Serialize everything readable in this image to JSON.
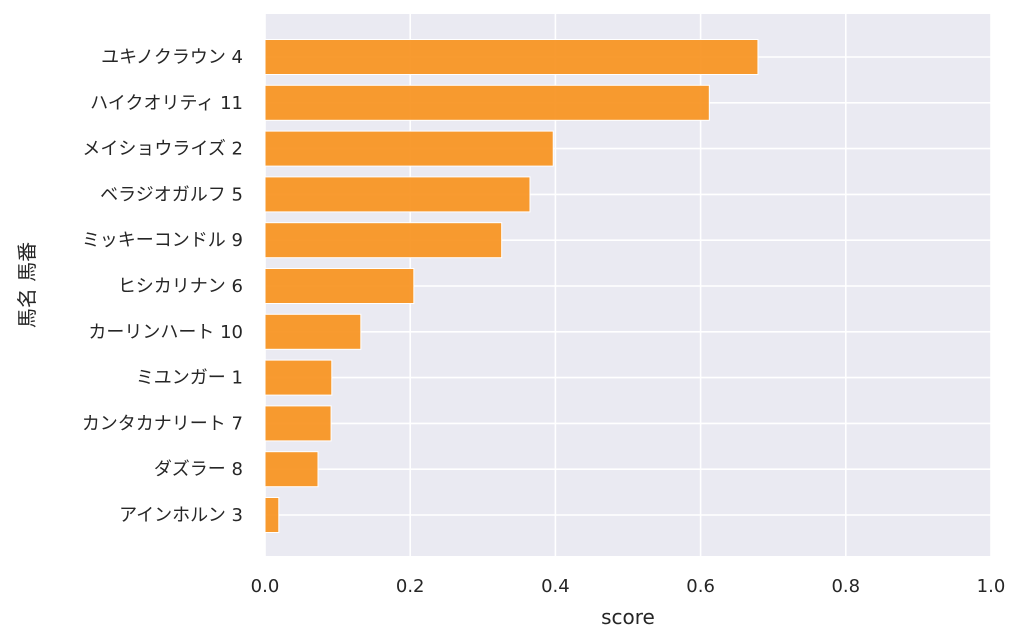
{
  "chart_data": {
    "type": "bar",
    "orientation": "horizontal",
    "xlabel": "score",
    "ylabel": "馬名 馬番",
    "xlim": [
      0.0,
      1.0
    ],
    "xticks": [
      "0.0",
      "0.2",
      "0.4",
      "0.6",
      "0.8",
      "1.0"
    ],
    "grid": true,
    "categories": [
      "ユキノクラウン 4",
      "ハイクオリティ 11",
      "メイショウライズ 2",
      "ベラジオガルフ 5",
      "ミッキーコンドル 9",
      "ヒシカリナン 6",
      "カーリンハート 10",
      "ミユンガー 1",
      "カンタカナリート 7",
      "ダズラー 8",
      "アインホルン 3"
    ],
    "values": [
      0.679,
      0.612,
      0.397,
      0.365,
      0.326,
      0.205,
      0.132,
      0.092,
      0.091,
      0.073,
      0.019
    ],
    "colors": {
      "bar": "#f7931e",
      "background": "#eaeaf2",
      "grid": "#ffffff"
    }
  }
}
